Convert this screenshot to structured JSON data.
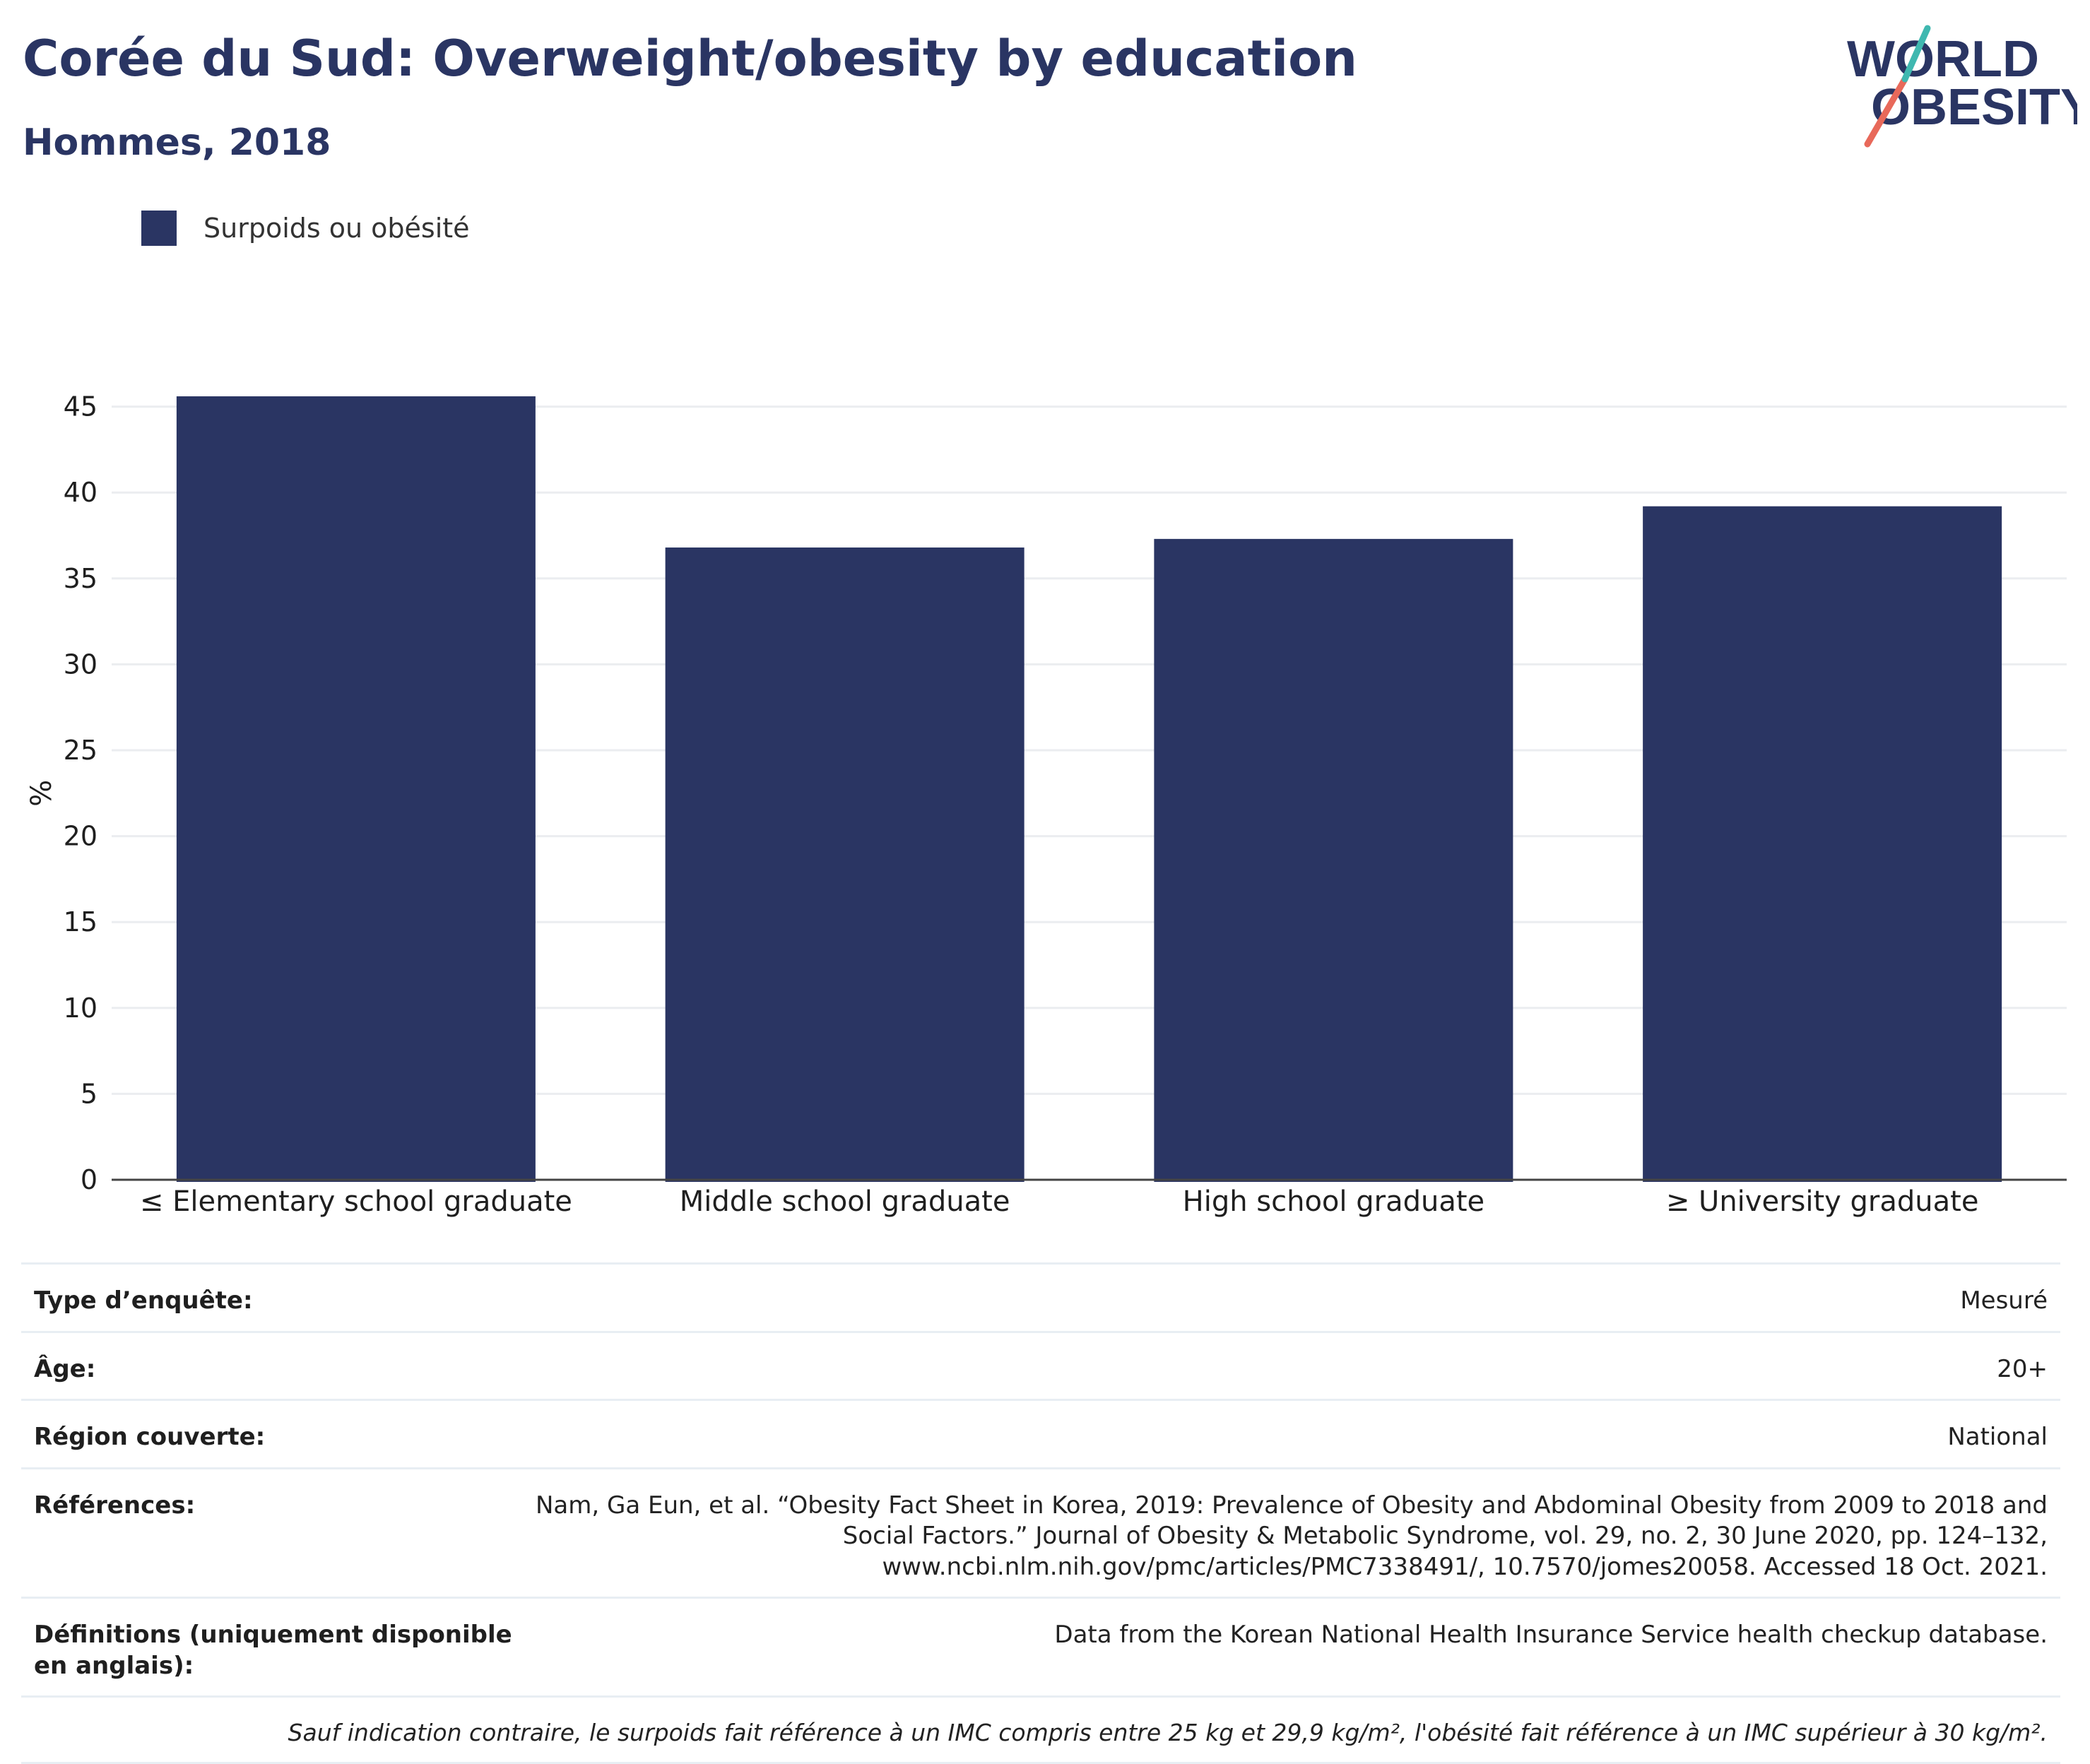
{
  "header": {
    "title": "Corée du Sud: Overweight/obesity by education",
    "subtitle": "Hommes, 2018"
  },
  "logo": {
    "line1": "WORLD",
    "line2": "OBESITY",
    "colors": {
      "text": "#2a3563",
      "slash_teal": "#3fb8b0",
      "slash_red": "#e8695a"
    }
  },
  "colors": {
    "bar": "#2a3563",
    "gridline": "#ebedf0",
    "axis": "#444444"
  },
  "chart_data": {
    "type": "bar",
    "categories": [
      "≤ Elementary school graduate",
      "Middle school graduate",
      "High school graduate",
      "≥ University graduate"
    ],
    "series": [
      {
        "name": "Surpoids ou obésité",
        "values": [
          45.6,
          36.8,
          37.3,
          39.2
        ]
      }
    ],
    "ylabel": "%",
    "xlabel": "",
    "ylim": [
      0,
      45
    ],
    "yticks": [
      0,
      5,
      10,
      15,
      20,
      25,
      30,
      35,
      40,
      45
    ],
    "grid": true,
    "legend": "top-left"
  },
  "info": {
    "rows": [
      {
        "label": "Type d’enquête:",
        "value": "Mesuré"
      },
      {
        "label": "Âge:",
        "value": "20+"
      },
      {
        "label": "Région couverte:",
        "value": "National"
      },
      {
        "label": "Références:",
        "value": "Nam, Ga Eun, et al. “Obesity Fact Sheet in Korea, 2019: Prevalence of Obesity and Abdominal Obesity from 2009 to 2018 and Social Factors.” Journal of Obesity & Metabolic Syndrome, vol. 29, no. 2, 30 June 2020, pp. 124–132, www.ncbi.nlm.nih.gov/pmc/articles/PMC7338491/, 10.7570/jomes20058. Accessed 18 Oct. 2021."
      },
      {
        "label": "Définitions (uniquement disponible en anglais):",
        "value": "Data from the Korean National Health Insurance Service health checkup database."
      }
    ],
    "footnote": "Sauf indication contraire, le surpoids fait référence à un IMC compris entre 25 kg et 29,9 kg/m², l'obésité fait référence à un IMC supérieur à 30 kg/m²."
  }
}
